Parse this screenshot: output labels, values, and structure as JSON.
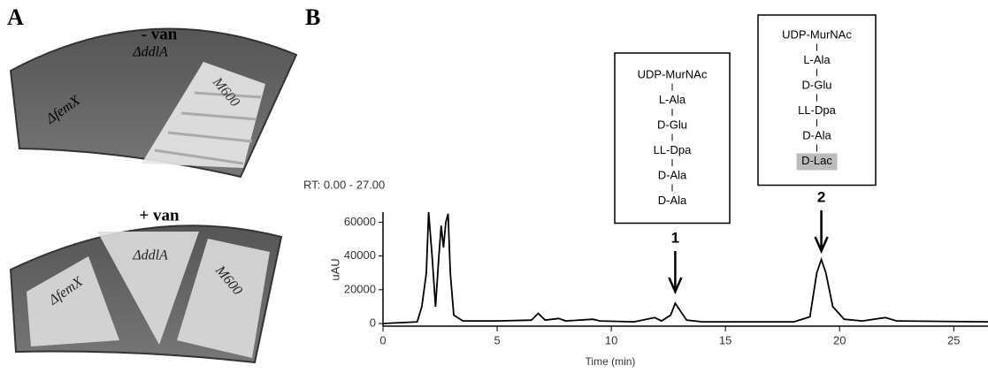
{
  "panel_a": {
    "label": "A",
    "plates": [
      {
        "title": "- van",
        "strains": [
          "ΔfemX",
          "ΔddlA",
          "M600"
        ]
      },
      {
        "title": "+ van",
        "strains": [
          "ΔfemX",
          "ΔddlA",
          "M600"
        ]
      }
    ]
  },
  "chart_data": {
    "type": "line",
    "panel_label": "B",
    "annotation": "RT: 0.00 - 27.00",
    "x_label": "Time (min)",
    "y_label": "uAU",
    "x": [
      0,
      1.5,
      1.7,
      1.9,
      2.0,
      2.15,
      2.3,
      2.45,
      2.55,
      2.65,
      2.75,
      2.85,
      2.95,
      3.1,
      3.5,
      5,
      6.5,
      6.8,
      7.1,
      7.7,
      8,
      9.2,
      9.5,
      11,
      11.9,
      12.2,
      12.6,
      12.8,
      13.0,
      13.3,
      14,
      18,
      18.7,
      19.0,
      19.2,
      19.4,
      19.7,
      20.2,
      21,
      22,
      22.5,
      26.5
    ],
    "series": [
      {
        "color": "#000000",
        "values": [
          0,
          1000,
          10000,
          30000,
          66000,
          40000,
          10000,
          40000,
          58000,
          45000,
          60000,
          65000,
          30000,
          5000,
          1500,
          1500,
          2000,
          6000,
          2000,
          3000,
          1500,
          2500,
          1500,
          1000,
          3500,
          1500,
          5000,
          12000,
          8000,
          2000,
          1000,
          1000,
          4000,
          30000,
          38000,
          30000,
          10000,
          2500,
          1500,
          3500,
          1500,
          1000
        ]
      }
    ],
    "xlim": [
      0,
      26.5
    ],
    "ylim": [
      0,
      66000
    ],
    "xticks": [
      0,
      5,
      10,
      15,
      20,
      25
    ],
    "yticks": [
      0,
      20000,
      40000,
      60000
    ],
    "peaks": [
      {
        "label": "1",
        "x": 12.8,
        "structure": [
          "UDP-MurNAc",
          "L-Ala",
          "D-Glu",
          "LL-Dpa",
          "D-Ala",
          "D-Ala"
        ]
      },
      {
        "label": "2",
        "x": 19.2,
        "structure": [
          "UDP-MurNAc",
          "L-Ala",
          "D-Glu",
          "LL-Dpa",
          "D-Ala",
          "D-Lac"
        ],
        "highlight": 5
      }
    ]
  }
}
